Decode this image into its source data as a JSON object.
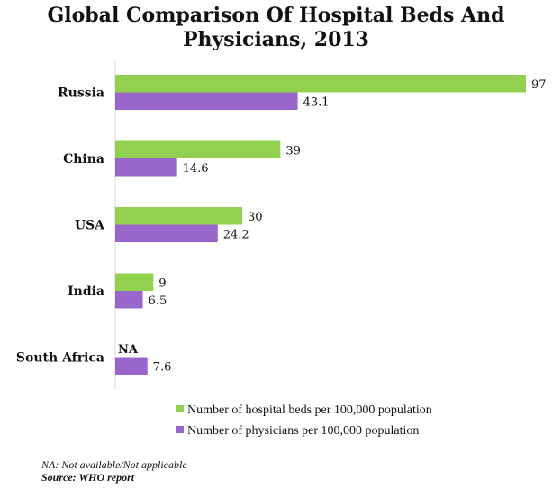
{
  "chart_data": {
    "type": "bar",
    "orientation": "horizontal",
    "title_lines": [
      "Global Comparison Of Hospital Beds And",
      "Physicians, 2013"
    ],
    "categories": [
      "Russia",
      "China",
      "USA",
      "India",
      "South Africa"
    ],
    "series": [
      {
        "name": "Number of hospital beds per 100,000 population",
        "color": "#92d050",
        "values": [
          97,
          39,
          30,
          9,
          null
        ],
        "labels": [
          "97",
          "39",
          "30",
          "9",
          "NA"
        ]
      },
      {
        "name": "Number of physicians per 100,000 population",
        "color": "#9966cc",
        "values": [
          43.1,
          14.6,
          24.2,
          6.5,
          7.6
        ],
        "labels": [
          "43.1",
          "14.6",
          "24.2",
          "6.5",
          "7.6"
        ]
      }
    ],
    "xlim": [
      0,
      97
    ],
    "grid": false,
    "legend_position": "bottom"
  },
  "notes": {
    "na": "NA:  Not available/Not applicable",
    "source": "Source: WHO report"
  }
}
